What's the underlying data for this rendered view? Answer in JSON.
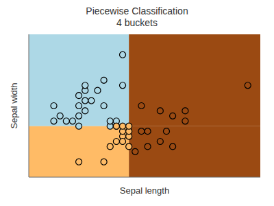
{
  "chart_data": {
    "type": "scatter",
    "title": "Piecewise Classification\n4 buckets",
    "xlabel": "Sepal length",
    "ylabel": "Sepal width",
    "xlim": [
      4.2,
      7.9
    ],
    "ylim": [
      2.0,
      4.8
    ],
    "tick_labels": false,
    "grid": false,
    "x_split": 5.8,
    "y_split": 3.0,
    "region_colors": {
      "top_left": "#add8e6",
      "top_right": "#9B4A12",
      "bottom_left": "#FFBB66",
      "bottom_right": "#9B4A12"
    },
    "series": [
      {
        "color": "#add8e6",
        "values": [
          [
            4.6,
            3.1
          ],
          [
            4.7,
            3.2
          ],
          [
            4.8,
            3.1
          ],
          [
            5.0,
            3.2
          ],
          [
            5.0,
            3.4
          ],
          [
            5.0,
            3.6
          ],
          [
            5.1,
            3.3
          ],
          [
            5.1,
            3.5
          ],
          [
            5.1,
            3.7
          ],
          [
            5.1,
            3.8
          ],
          [
            5.2,
            3.5
          ],
          [
            5.3,
            3.7
          ],
          [
            5.4,
            3.4
          ],
          [
            5.4,
            3.9
          ],
          [
            5.5,
            3.0
          ],
          [
            5.5,
            3.1
          ],
          [
            5.6,
            3.0
          ],
          [
            5.6,
            3.1
          ],
          [
            5.7,
            3.8
          ],
          [
            5.7,
            4.4
          ],
          [
            4.9,
            3.1
          ],
          [
            5.0,
            3.0
          ],
          [
            4.6,
            3.4
          ]
        ]
      },
      {
        "color": "#FFBB66",
        "values": [
          [
            5.0,
            2.3
          ],
          [
            5.4,
            2.3
          ],
          [
            5.5,
            2.6
          ],
          [
            5.6,
            2.7
          ],
          [
            5.7,
            2.8
          ],
          [
            5.7,
            2.9
          ],
          [
            5.8,
            2.8
          ],
          [
            5.8,
            2.9
          ],
          [
            5.8,
            3.0
          ],
          [
            5.8,
            2.6
          ],
          [
            5.7,
            2.7
          ],
          [
            5.7,
            3.0
          ],
          [
            5.6,
            3.0
          ]
        ]
      },
      {
        "color": "#9B4A12",
        "values": [
          [
            6.0,
            2.9
          ],
          [
            6.1,
            2.9
          ],
          [
            6.3,
            3.3
          ],
          [
            6.5,
            3.2
          ],
          [
            6.7,
            3.1
          ],
          [
            6.7,
            3.3
          ],
          [
            7.7,
            3.8
          ],
          [
            5.9,
            2.5
          ],
          [
            6.1,
            2.6
          ],
          [
            6.3,
            2.7
          ],
          [
            6.4,
            2.9
          ],
          [
            6.5,
            2.6
          ],
          [
            6.0,
            3.4
          ]
        ]
      }
    ]
  }
}
